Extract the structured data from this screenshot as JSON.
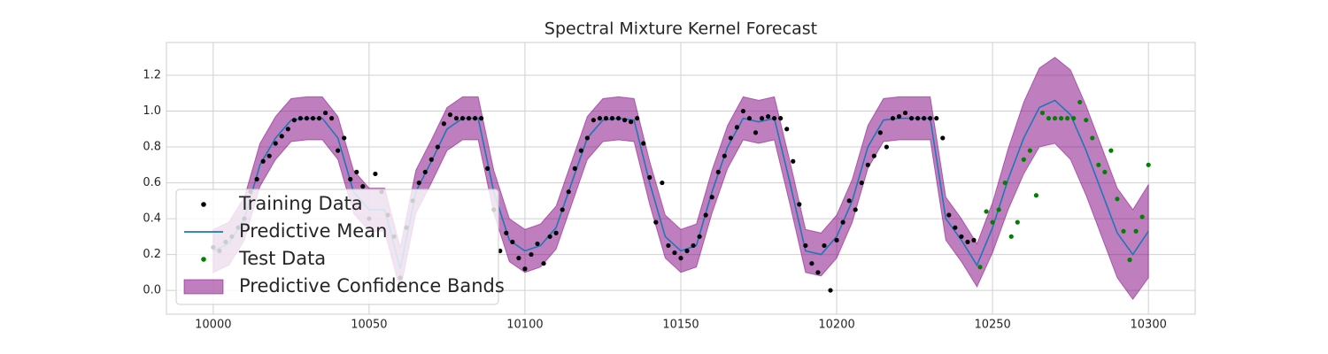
{
  "chart_data": {
    "type": "line",
    "title": "Spectral Mixture Kernel Forecast",
    "xlim": [
      9985,
      10315
    ],
    "ylim": [
      -0.133,
      1.383
    ],
    "xticks": [
      10000,
      10050,
      10100,
      10150,
      10200,
      10250,
      10300
    ],
    "yticks": [
      {
        "value": 0,
        "label": "0.0"
      },
      0.2,
      0.4,
      0.6,
      0.8,
      {
        "value": 1,
        "label": "1.0"
      },
      1.2
    ],
    "grid": true,
    "legend": "lower left",
    "series": [
      {
        "name": "Training Data",
        "kind": "scatter",
        "color": "#000000",
        "x": [
          10000,
          10002,
          10004,
          10006,
          10008,
          10010,
          10012,
          10014,
          10016,
          10018,
          10020,
          10022,
          10024,
          10026,
          10028,
          10030,
          10032,
          10034,
          10036,
          10038,
          10040,
          10042,
          10044,
          10046,
          10048,
          10050,
          10052,
          10054,
          10056,
          10058,
          10060,
          10062,
          10064,
          10066,
          10068,
          10070,
          10072,
          10074,
          10076,
          10078,
          10080,
          10082,
          10084,
          10086,
          10088,
          10090,
          10092,
          10094,
          10096,
          10098,
          10100,
          10102,
          10104,
          10106,
          10108,
          10110,
          10112,
          10114,
          10116,
          10118,
          10120,
          10122,
          10124,
          10126,
          10128,
          10130,
          10132,
          10134,
          10136,
          10138,
          10140,
          10142,
          10144,
          10146,
          10148,
          10150,
          10152,
          10154,
          10156,
          10158,
          10160,
          10162,
          10164,
          10166,
          10168,
          10170,
          10172,
          10174,
          10176,
          10178,
          10180,
          10182,
          10184,
          10186,
          10188,
          10190,
          10192,
          10194,
          10196,
          10198,
          10200,
          10202,
          10204,
          10206,
          10208,
          10210,
          10212,
          10214,
          10216,
          10218,
          10220,
          10222,
          10224,
          10226,
          10228,
          10230,
          10232,
          10234,
          10236,
          10238,
          10240,
          10242,
          10244
        ],
        "values": [
          0.24,
          0.22,
          0.27,
          0.3,
          0.35,
          0.4,
          0.55,
          0.62,
          0.72,
          0.75,
          0.82,
          0.86,
          0.9,
          0.95,
          0.96,
          0.96,
          0.96,
          0.96,
          0.99,
          0.96,
          0.78,
          0.85,
          0.62,
          0.66,
          0.58,
          0.4,
          0.65,
          0.55,
          0.42,
          0.3,
          0.07,
          0.35,
          0.5,
          0.6,
          0.66,
          0.73,
          0.8,
          0.93,
          0.98,
          0.96,
          0.96,
          0.96,
          0.96,
          0.96,
          0.68,
          0.45,
          0.22,
          0.32,
          0.27,
          0.18,
          0.12,
          0.2,
          0.26,
          0.15,
          0.3,
          0.32,
          0.45,
          0.55,
          0.68,
          0.78,
          0.85,
          0.95,
          0.96,
          0.96,
          0.96,
          0.96,
          0.95,
          0.94,
          0.96,
          0.82,
          0.63,
          0.38,
          0.6,
          0.25,
          0.21,
          0.18,
          0.22,
          0.25,
          0.3,
          0.42,
          0.52,
          0.66,
          0.75,
          0.85,
          0.91,
          1.0,
          0.96,
          0.88,
          0.96,
          0.97,
          0.96,
          0.96,
          0.9,
          0.72,
          0.48,
          0.25,
          0.15,
          0.1,
          0.25,
          0.0,
          0.28,
          0.38,
          0.5,
          0.45,
          0.6,
          0.7,
          0.75,
          0.88,
          0.8,
          0.96,
          0.97,
          0.99,
          0.96,
          0.96,
          0.96,
          0.96,
          0.96,
          0.85,
          0.42,
          0.35,
          0.3,
          0.27,
          0.28
        ]
      },
      {
        "name": "Predictive Mean",
        "kind": "line",
        "color": "#1f77b4",
        "x": [
          10000,
          10005,
          10010,
          10015,
          10020,
          10025,
          10030,
          10035,
          10040,
          10045,
          10050,
          10055,
          10060,
          10065,
          10070,
          10075,
          10080,
          10085,
          10090,
          10095,
          10100,
          10105,
          10110,
          10115,
          10120,
          10125,
          10130,
          10135,
          10140,
          10145,
          10150,
          10155,
          10160,
          10165,
          10170,
          10175,
          10180,
          10185,
          10190,
          10195,
          10200,
          10205,
          10210,
          10215,
          10220,
          10225,
          10230,
          10235,
          10240,
          10245,
          10250,
          10255,
          10260,
          10265,
          10270,
          10275,
          10280,
          10285,
          10290,
          10295,
          10300
        ],
        "values": [
          0.22,
          0.26,
          0.4,
          0.7,
          0.85,
          0.95,
          0.96,
          0.96,
          0.85,
          0.55,
          0.45,
          0.45,
          0.12,
          0.55,
          0.72,
          0.9,
          0.96,
          0.96,
          0.55,
          0.28,
          0.22,
          0.25,
          0.35,
          0.6,
          0.85,
          0.95,
          0.96,
          0.95,
          0.6,
          0.3,
          0.22,
          0.25,
          0.55,
          0.8,
          0.96,
          0.94,
          0.96,
          0.6,
          0.22,
          0.2,
          0.3,
          0.5,
          0.8,
          0.95,
          0.96,
          0.96,
          0.96,
          0.4,
          0.28,
          0.14,
          0.35,
          0.62,
          0.85,
          1.02,
          1.06,
          0.98,
          0.78,
          0.55,
          0.32,
          0.2,
          0.33
        ]
      },
      {
        "name": "Test Data",
        "kind": "scatter",
        "color": "#008000",
        "x": [
          10246,
          10248,
          10250,
          10252,
          10254,
          10256,
          10258,
          10260,
          10262,
          10264,
          10266,
          10268,
          10270,
          10272,
          10274,
          10276,
          10278,
          10280,
          10282,
          10284,
          10286,
          10288,
          10290,
          10292,
          10294,
          10296,
          10298,
          10300
        ],
        "values": [
          0.13,
          0.44,
          0.38,
          0.45,
          0.6,
          0.3,
          0.38,
          0.73,
          0.78,
          0.53,
          0.99,
          0.96,
          0.96,
          0.96,
          0.96,
          0.96,
          1.05,
          0.95,
          0.85,
          0.7,
          0.66,
          0.78,
          0.51,
          0.33,
          0.17,
          0.33,
          0.41,
          0.7
        ]
      },
      {
        "name": "Predictive Confidence Bands",
        "kind": "band",
        "color": "#800080",
        "x": [
          10000,
          10005,
          10010,
          10015,
          10020,
          10025,
          10030,
          10035,
          10040,
          10045,
          10050,
          10055,
          10060,
          10065,
          10070,
          10075,
          10080,
          10085,
          10090,
          10095,
          10100,
          10105,
          10110,
          10115,
          10120,
          10125,
          10130,
          10135,
          10140,
          10145,
          10150,
          10155,
          10160,
          10165,
          10170,
          10175,
          10180,
          10185,
          10190,
          10195,
          10200,
          10205,
          10210,
          10215,
          10220,
          10225,
          10230,
          10235,
          10240,
          10245,
          10250,
          10255,
          10260,
          10265,
          10270,
          10275,
          10280,
          10285,
          10290,
          10295,
          10300
        ],
        "lower": [
          0.1,
          0.14,
          0.28,
          0.58,
          0.73,
          0.83,
          0.84,
          0.84,
          0.73,
          0.43,
          0.33,
          0.33,
          0.0,
          0.43,
          0.6,
          0.78,
          0.84,
          0.84,
          0.43,
          0.16,
          0.1,
          0.13,
          0.23,
          0.48,
          0.73,
          0.83,
          0.84,
          0.83,
          0.48,
          0.18,
          0.1,
          0.13,
          0.43,
          0.68,
          0.84,
          0.82,
          0.84,
          0.48,
          0.1,
          0.08,
          0.18,
          0.38,
          0.68,
          0.83,
          0.84,
          0.84,
          0.84,
          0.28,
          0.16,
          0.02,
          0.21,
          0.45,
          0.65,
          0.8,
          0.82,
          0.73,
          0.53,
          0.3,
          0.07,
          -0.05,
          0.07
        ],
        "upper": [
          0.34,
          0.38,
          0.52,
          0.82,
          0.97,
          1.07,
          1.08,
          1.08,
          0.97,
          0.67,
          0.57,
          0.57,
          0.24,
          0.67,
          0.84,
          1.02,
          1.08,
          1.08,
          0.67,
          0.4,
          0.34,
          0.37,
          0.47,
          0.72,
          0.97,
          1.07,
          1.08,
          1.07,
          0.72,
          0.42,
          0.34,
          0.37,
          0.67,
          0.92,
          1.08,
          1.06,
          1.08,
          0.72,
          0.34,
          0.32,
          0.42,
          0.62,
          0.92,
          1.07,
          1.08,
          1.08,
          1.08,
          0.52,
          0.4,
          0.26,
          0.49,
          0.79,
          1.05,
          1.24,
          1.3,
          1.23,
          1.03,
          0.8,
          0.57,
          0.45,
          0.59
        ]
      }
    ]
  }
}
